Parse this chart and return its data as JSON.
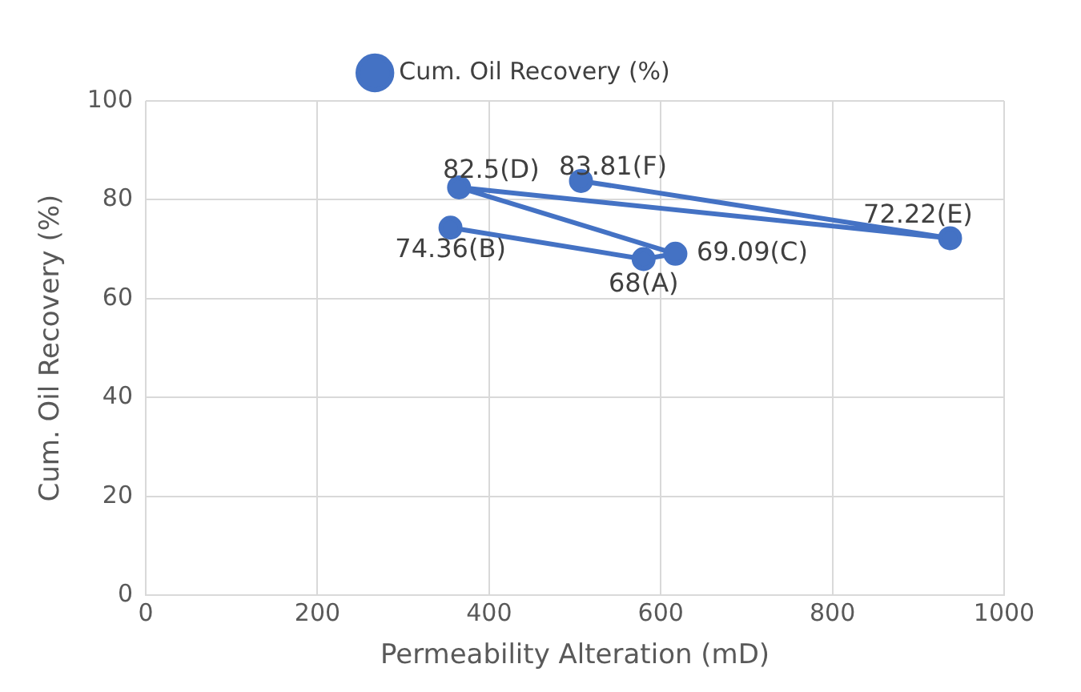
{
  "chart_data": {
    "type": "line",
    "xlabel": "Permeability Alteration (mD)",
    "ylabel": "Cum. Oil Recovery (%)",
    "x": [
      355,
      580,
      617,
      365,
      937,
      507
    ],
    "series": [
      {
        "name": "Cum. Oil Recovery (%)",
        "color": "#4472c4",
        "values": [
          74.36,
          68,
          69.09,
          82.5,
          72.22,
          83.81
        ],
        "value_labels": [
          "74.36(B)",
          "68(A)",
          "69.09(C)",
          "82.5(D)",
          "72.22(E)",
          "83.81(F)"
        ]
      }
    ],
    "xlim": [
      0,
      1000
    ],
    "xticks": [
      0,
      200,
      400,
      600,
      800,
      1000
    ],
    "ylim": [
      0,
      100
    ],
    "yticks": [
      0,
      20,
      40,
      60,
      80,
      100
    ],
    "grid": true,
    "legend": "top",
    "marker": "circle",
    "line_style": "solid"
  }
}
